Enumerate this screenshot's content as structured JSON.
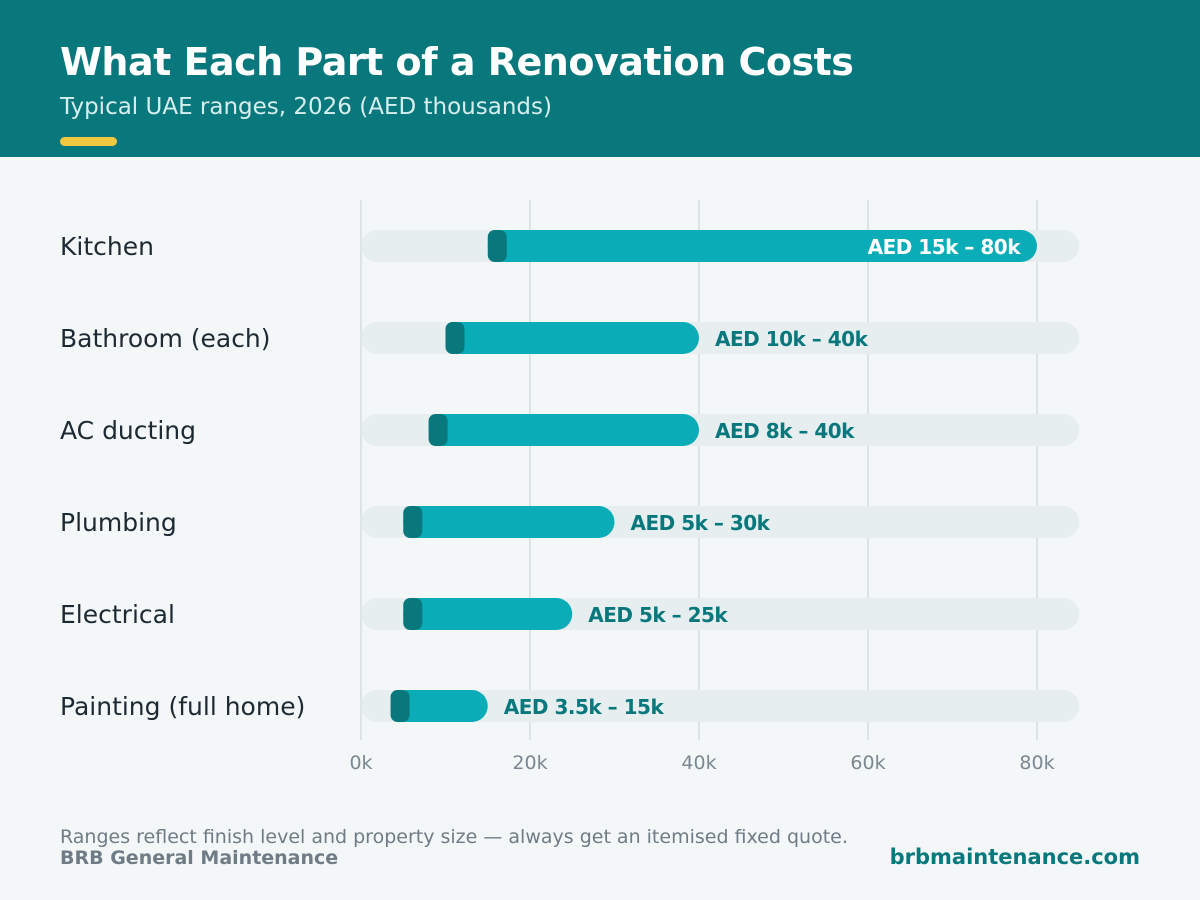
{
  "header": {
    "title": "What Each Part of a Renovation Costs",
    "subtitle": "Typical UAE ranges, 2026 (AED thousands)"
  },
  "colors": {
    "header_bg": "#08787c",
    "accent": "#f3c841",
    "bar": "#0aadb7",
    "bar_cap": "#08787c",
    "track": "#e6eef0",
    "label_dark": "#08787c",
    "label_light": "#ffffff",
    "category_text": "#1d2a33",
    "tick_text": "#7b8791",
    "grid": "#dde4e7"
  },
  "chart_data": {
    "type": "bar",
    "orientation": "horizontal",
    "subtype": "range",
    "categories": [
      "Kitchen",
      "Bathroom (each)",
      "AC ducting",
      "Plumbing",
      "Electrical",
      "Painting (full home)"
    ],
    "ranges": [
      [
        15,
        80
      ],
      [
        10,
        40
      ],
      [
        8,
        40
      ],
      [
        5,
        30
      ],
      [
        5,
        25
      ],
      [
        3.5,
        15
      ]
    ],
    "data_labels": [
      "AED 15k – 80k",
      "AED 10k – 40k",
      "AED 8k – 40k",
      "AED 5k – 30k",
      "AED 5k – 25k",
      "AED 3.5k – 15k"
    ],
    "x_ticks": [
      0,
      20,
      40,
      60,
      80
    ],
    "x_tick_labels": [
      "0k",
      "20k",
      "40k",
      "60k",
      "80k"
    ],
    "xlim": [
      0,
      85
    ],
    "grid": true
  },
  "footer": {
    "note": "Ranges reflect finish level and property size — always get an itemised fixed quote.",
    "brand": "BRB General Maintenance",
    "url": "brbmaintenance.com"
  }
}
